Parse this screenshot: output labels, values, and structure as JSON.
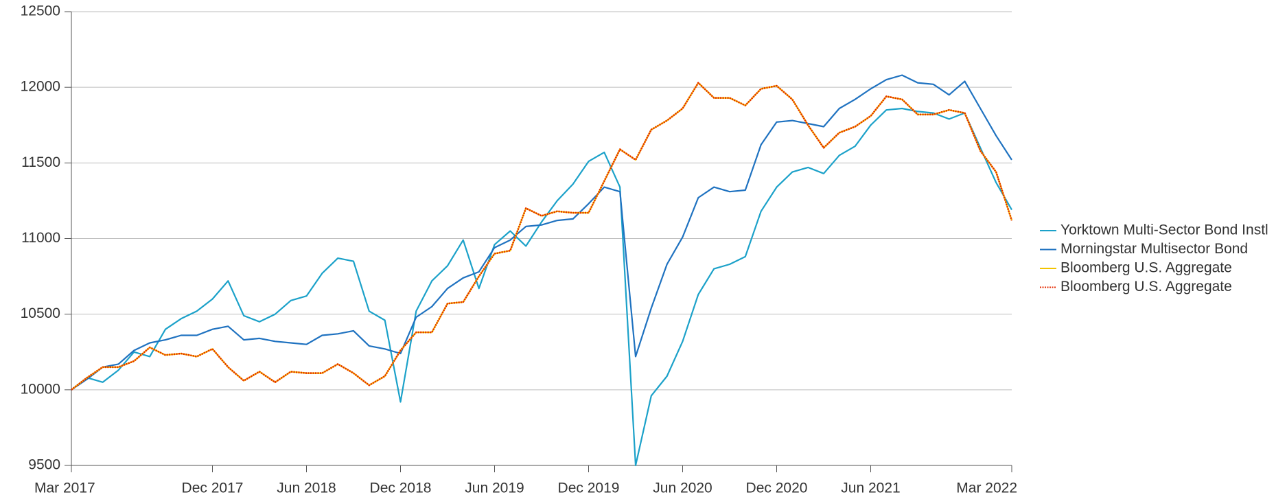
{
  "chart_data": {
    "type": "line",
    "categories": [
      "Mar 2017",
      null,
      null,
      null,
      null,
      null,
      null,
      null,
      null,
      "Dec 2017",
      null,
      null,
      null,
      null,
      null,
      "Jun 2018",
      null,
      null,
      null,
      null,
      null,
      "Dec 2018",
      null,
      null,
      null,
      null,
      null,
      "Jun 2019",
      null,
      null,
      null,
      null,
      null,
      "Dec 2019",
      null,
      null,
      null,
      null,
      null,
      "Jun 2020",
      null,
      null,
      null,
      null,
      null,
      "Dec 2020",
      null,
      null,
      null,
      null,
      null,
      "Jun 2021",
      null,
      null,
      null,
      null,
      null,
      null,
      null,
      null,
      "Mar 2022"
    ],
    "series": [
      {
        "name": "Yorktown Multi-Sector Bond Instl",
        "color": "#1ba1c9",
        "values": [
          10000,
          10080,
          10050,
          10130,
          10250,
          10220,
          10400,
          10470,
          10520,
          10600,
          10720,
          10490,
          10450,
          10500,
          10590,
          10620,
          10770,
          10870,
          10850,
          10520,
          10460,
          9920,
          10520,
          10720,
          10820,
          10990,
          10670,
          10960,
          11050,
          10950,
          11110,
          11250,
          11360,
          11510,
          11570,
          11340,
          9500,
          9960,
          10090,
          10320,
          10630,
          10800,
          10830,
          10880,
          11180,
          11340,
          11440,
          11470,
          11430,
          11550,
          11610,
          11750,
          11850,
          11860,
          11840,
          11830,
          11790,
          11830,
          11600,
          11370,
          11190
        ]
      },
      {
        "name": "Morningstar Multisector Bond",
        "color": "#1f72c0",
        "values": [
          10000,
          10070,
          10150,
          10170,
          10260,
          10310,
          10330,
          10360,
          10360,
          10400,
          10420,
          10330,
          10340,
          10320,
          10310,
          10300,
          10360,
          10370,
          10390,
          10290,
          10270,
          10240,
          10480,
          10550,
          10670,
          10740,
          10780,
          10940,
          10990,
          11080,
          11090,
          11120,
          11130,
          11230,
          11340,
          11310,
          10220,
          10540,
          10830,
          11010,
          11270,
          11340,
          11310,
          11320,
          11620,
          11770,
          11780,
          11760,
          11740,
          11860,
          11920,
          11990,
          12050,
          12080,
          12030,
          12020,
          11950,
          12040,
          11860,
          11680,
          11520
        ]
      },
      {
        "name": "Bloomberg U.S. Aggregate",
        "color": "#f2c400",
        "dash": false,
        "values": [
          10000,
          10080,
          10150,
          10150,
          10190,
          10280,
          10230,
          10240,
          10220,
          10270,
          10150,
          10060,
          10120,
          10050,
          10120,
          10110,
          10110,
          10170,
          10110,
          10030,
          10090,
          10260,
          10380,
          10380,
          10570,
          10580,
          10750,
          10900,
          10920,
          11200,
          11150,
          11180,
          11170,
          11170,
          11380,
          11590,
          11520,
          11720,
          11780,
          11860,
          12030,
          11930,
          11930,
          11880,
          11990,
          12010,
          11920,
          11750,
          11600,
          11700,
          11740,
          11810,
          11940,
          11920,
          11820,
          11820,
          11850,
          11830,
          11580,
          11440,
          11120
        ]
      },
      {
        "name": "Bloomberg U.S. Aggregate",
        "color": "#e52a00",
        "dash": true,
        "values": [
          10000,
          10080,
          10150,
          10150,
          10190,
          10280,
          10230,
          10240,
          10220,
          10270,
          10150,
          10060,
          10120,
          10050,
          10120,
          10110,
          10110,
          10170,
          10110,
          10030,
          10090,
          10260,
          10380,
          10380,
          10570,
          10580,
          10750,
          10900,
          10920,
          11200,
          11150,
          11180,
          11170,
          11170,
          11380,
          11590,
          11520,
          11720,
          11780,
          11860,
          12030,
          11930,
          11930,
          11880,
          11990,
          12010,
          11920,
          11750,
          11600,
          11700,
          11740,
          11810,
          11940,
          11920,
          11820,
          11820,
          11850,
          11830,
          11580,
          11440,
          11120
        ]
      }
    ],
    "ylim": [
      9500,
      12500
    ],
    "yticks": [
      9500,
      10000,
      10500,
      11000,
      11500,
      12000,
      12500
    ],
    "grid": true,
    "legend": "right"
  }
}
